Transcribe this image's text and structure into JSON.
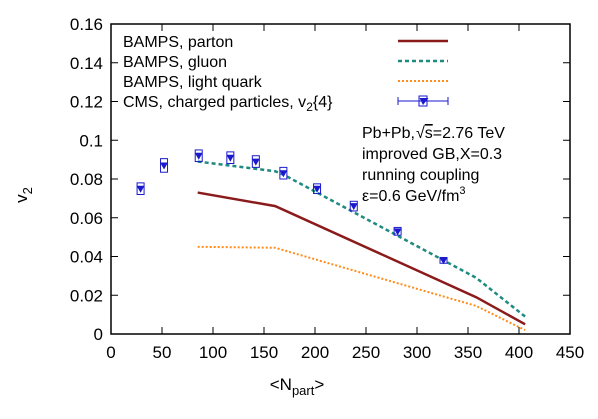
{
  "chart_data": {
    "type": "line",
    "xlabel": "<N",
    "xlabel_sub": "part",
    "xlabel_end": ">",
    "ylabel": "v",
    "ylabel_sub": "2",
    "xlim": [
      0,
      450
    ],
    "ylim": [
      0,
      0.16
    ],
    "x_ticks": [
      0,
      50,
      100,
      150,
      200,
      250,
      300,
      350,
      400,
      450
    ],
    "y_ticks": [
      0,
      0.02,
      0.04,
      0.06,
      0.08,
      0.1,
      0.12,
      0.14,
      0.16
    ],
    "x_tick_labels": [
      "0",
      "50",
      "100",
      "150",
      "200",
      "250",
      "300",
      "350",
      "400",
      "450"
    ],
    "y_tick_labels": [
      "0",
      "0.02",
      "0.04",
      "0.06",
      "0.08",
      "0.1",
      "0.12",
      "0.14",
      "0.16"
    ],
    "grid": false,
    "legend_position": "top-left",
    "series": [
      {
        "name": "BAMPS, parton",
        "style": "solid",
        "color": "#8b1a1a",
        "x": [
          85,
          161,
          358,
          406
        ],
        "y": [
          0.073,
          0.066,
          0.019,
          0.005
        ]
      },
      {
        "name": "BAMPS, gluon",
        "style": "dashed",
        "color": "#1f8a7f",
        "x": [
          85,
          161,
          170,
          358,
          406
        ],
        "y": [
          0.089,
          0.084,
          0.082,
          0.029,
          0.009
        ]
      },
      {
        "name": "BAMPS, light quark",
        "style": "dotted",
        "color": "#ff8c1a",
        "x": [
          85,
          161,
          358,
          406
        ],
        "y": [
          0.045,
          0.0445,
          0.0145,
          0.002
        ]
      },
      {
        "name": "CMS, charged particles, v",
        "name_sub": "2",
        "name_end": "{4}",
        "style": "points",
        "color": "#1a1acc",
        "x": [
          29,
          52,
          86,
          117,
          142,
          169,
          202,
          238,
          281,
          326
        ],
        "y": [
          0.075,
          0.087,
          0.092,
          0.091,
          0.089,
          0.083,
          0.075,
          0.066,
          0.053,
          0.038
        ],
        "sys_err": [
          0.003,
          0.0035,
          0.003,
          0.003,
          0.003,
          0.003,
          0.0025,
          0.0025,
          0.002,
          0.0015
        ]
      }
    ],
    "annotations": [
      {
        "prefix": "Pb+Pb,",
        "sqrt": "s",
        "suffix": "=2.76 TeV"
      },
      {
        "text": "improved GB,X=0.3"
      },
      {
        "text": "running coupling"
      },
      {
        "text": "ε=0.6 GeV/fm",
        "sup": "3"
      }
    ]
  }
}
